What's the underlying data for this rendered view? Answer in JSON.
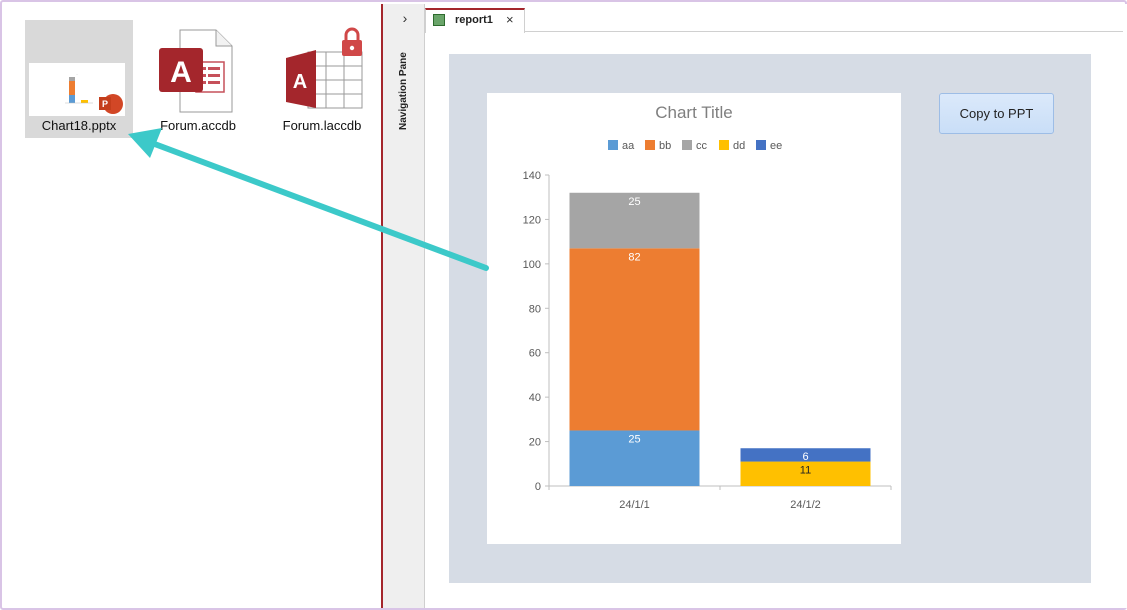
{
  "explorer": {
    "files": [
      {
        "name": "Chart18.pptx",
        "icon": "pptx-thumbnail-icon"
      },
      {
        "name": "Forum.accdb",
        "icon": "access-database-icon"
      },
      {
        "name": "Forum.laccdb",
        "icon": "locked-access-database-icon"
      }
    ]
  },
  "nav": {
    "chevron": "›",
    "label": "Navigation Pane"
  },
  "tab": {
    "label": "report1",
    "close": "×"
  },
  "button": {
    "copy_label": "Copy to PPT"
  },
  "colors": {
    "aa": "#5b9bd5",
    "bb": "#ed7d31",
    "cc": "#a5a5a5",
    "dd": "#ffc000",
    "ee": "#4472c4",
    "arrow": "#3cc9c9",
    "access_red": "#a4262c"
  },
  "chart_data": {
    "type": "bar",
    "stacked": true,
    "title": "Chart Title",
    "categories": [
      "24/1/1",
      "24/1/2"
    ],
    "series": [
      {
        "name": "aa",
        "values": [
          25,
          null
        ]
      },
      {
        "name": "bb",
        "values": [
          82,
          null
        ]
      },
      {
        "name": "cc",
        "values": [
          25,
          null
        ]
      },
      {
        "name": "dd",
        "values": [
          null,
          11
        ]
      },
      {
        "name": "ee",
        "values": [
          null,
          6
        ]
      }
    ],
    "yticks": [
      "0",
      "20",
      "40",
      "60",
      "80",
      "100",
      "120",
      "140"
    ],
    "ylim": [
      0,
      140
    ],
    "legend": "top"
  }
}
